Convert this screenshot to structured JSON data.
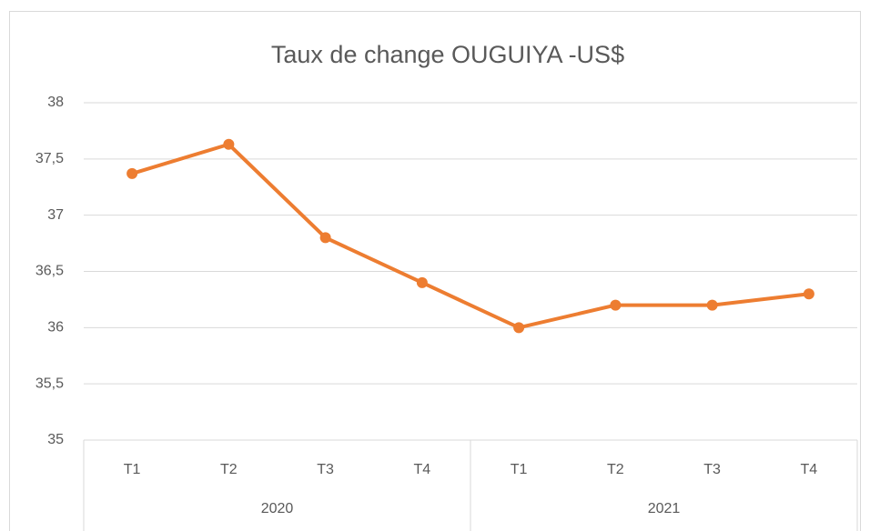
{
  "chart_data": {
    "type": "line",
    "title": "Taux de change OUGUIYA -US$",
    "categories": [
      "T1",
      "T2",
      "T3",
      "T4",
      "T1",
      "T2",
      "T3",
      "T4"
    ],
    "category_groups": [
      "2020",
      "2021"
    ],
    "series": [
      {
        "name": "Taux de change",
        "color": "#ed7d31",
        "values": [
          37.37,
          37.63,
          36.8,
          36.4,
          36.0,
          36.2,
          36.2,
          36.3
        ]
      }
    ],
    "ylim": [
      35,
      38
    ],
    "yticks": [
      35,
      {
        "value": 35.5,
        "label": "35,5"
      },
      36,
      {
        "value": 36.5,
        "label": "36,5"
      },
      37,
      {
        "value": 37.5,
        "label": "37,5"
      },
      38
    ],
    "grid": true
  }
}
